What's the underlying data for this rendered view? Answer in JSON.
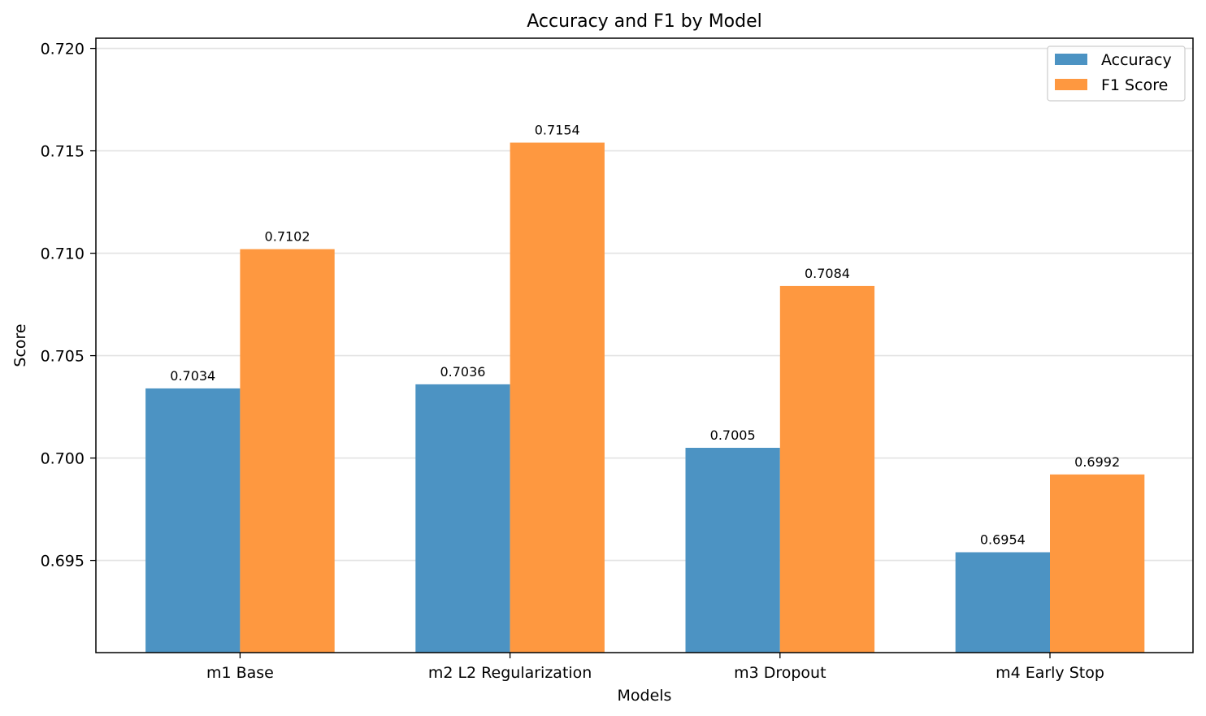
{
  "chart_data": {
    "type": "bar",
    "title": "Accuracy and F1 by Model",
    "xlabel": "Models",
    "ylabel": "Score",
    "categories": [
      "m1 Base",
      "m2 L2 Regularization",
      "m3 Dropout",
      "m4 Early Stop"
    ],
    "series": [
      {
        "name": "Accuracy",
        "values": [
          0.7034,
          0.7036,
          0.7005,
          0.6954
        ],
        "labels": [
          "0.7034",
          "0.7036",
          "0.7005",
          "0.6954"
        ],
        "color": "#4c93c3"
      },
      {
        "name": "F1 Score",
        "values": [
          0.7102,
          0.7154,
          0.7084,
          0.6992
        ],
        "labels": [
          "0.7102",
          "0.7154",
          "0.7084",
          "0.6992"
        ],
        "color": "#fe9840"
      }
    ],
    "ylim": [
      0.6905,
      0.7205
    ],
    "yticks": [
      0.695,
      0.7,
      0.705,
      0.71,
      0.715,
      0.72
    ],
    "ytick_labels": [
      "0.695",
      "0.700",
      "0.705",
      "0.710",
      "0.715",
      "0.720"
    ],
    "grid": "horizontal",
    "legend": "top-right"
  }
}
